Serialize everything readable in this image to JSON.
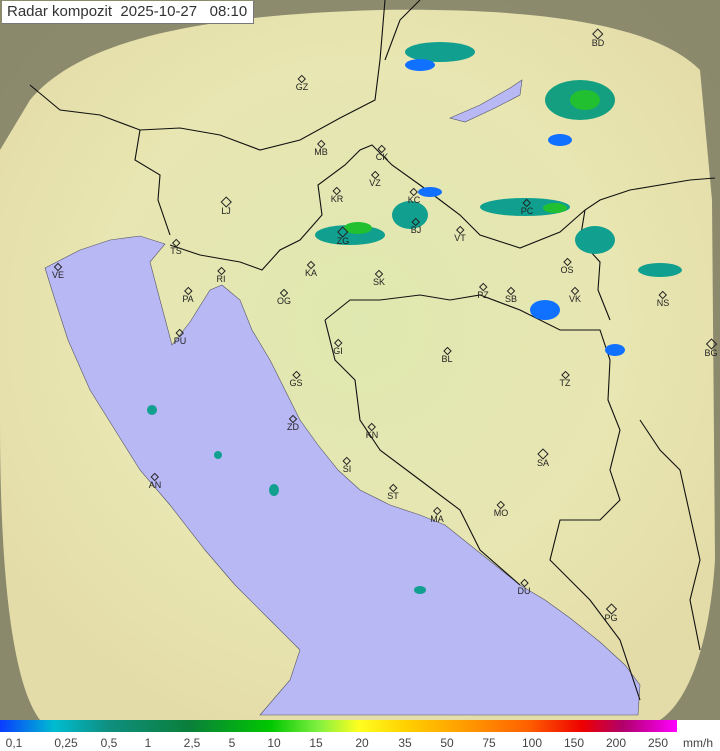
{
  "title": {
    "label": "Radar kompozit",
    "date": "2025-10-27",
    "time": "08:10"
  },
  "legend": {
    "unit": "mm/h",
    "ticks": [
      "0,1",
      "0,25",
      "0,5",
      "1",
      "2,5",
      "5",
      "10",
      "15",
      "20",
      "35",
      "50",
      "75",
      "100",
      "150",
      "200",
      "250"
    ],
    "colors": [
      "#0a3cff",
      "#00bcd0",
      "#0f8f80",
      "#0a7f3a",
      "#00c800",
      "#ffff20",
      "#ffa000",
      "#ee0000",
      "#b0006a",
      "#ff00ff"
    ]
  },
  "colors": {
    "land": "#e6ecb0",
    "sea": "#b8b8f4",
    "outside_range": "#6e6e58",
    "border": "#111111"
  },
  "cities": [
    {
      "code": "GZ",
      "big": false
    },
    {
      "code": "MB",
      "big": false
    },
    {
      "code": "CK",
      "big": false
    },
    {
      "code": "VZ",
      "big": false
    },
    {
      "code": "KR",
      "big": false
    },
    {
      "code": "KC",
      "big": false
    },
    {
      "code": "LJ",
      "big": true
    },
    {
      "code": "TS",
      "big": false
    },
    {
      "code": "ZG",
      "big": true
    },
    {
      "code": "BJ",
      "big": false
    },
    {
      "code": "VT",
      "big": false
    },
    {
      "code": "PC",
      "big": false
    },
    {
      "code": "KA",
      "big": false
    },
    {
      "code": "SK",
      "big": false
    },
    {
      "code": "OS",
      "big": false
    },
    {
      "code": "VE",
      "big": false
    },
    {
      "code": "RI",
      "big": false
    },
    {
      "code": "PA",
      "big": false
    },
    {
      "code": "OG",
      "big": false
    },
    {
      "code": "PZ",
      "big": false
    },
    {
      "code": "SB",
      "big": false
    },
    {
      "code": "VK",
      "big": false
    },
    {
      "code": "NS",
      "big": false
    },
    {
      "code": "PU",
      "big": false
    },
    {
      "code": "GI",
      "big": false
    },
    {
      "code": "BL",
      "big": false
    },
    {
      "code": "GS",
      "big": false
    },
    {
      "code": "BG",
      "big": true
    },
    {
      "code": "TZ",
      "big": false
    },
    {
      "code": "ZD",
      "big": false
    },
    {
      "code": "KN",
      "big": false
    },
    {
      "code": "SA",
      "big": true
    },
    {
      "code": "SI",
      "big": false
    },
    {
      "code": "AN",
      "big": false
    },
    {
      "code": "ST",
      "big": false
    },
    {
      "code": "MA",
      "big": false
    },
    {
      "code": "MO",
      "big": false
    },
    {
      "code": "DU",
      "big": false
    },
    {
      "code": "PG",
      "big": true
    },
    {
      "code": "BD",
      "big": true
    }
  ]
}
